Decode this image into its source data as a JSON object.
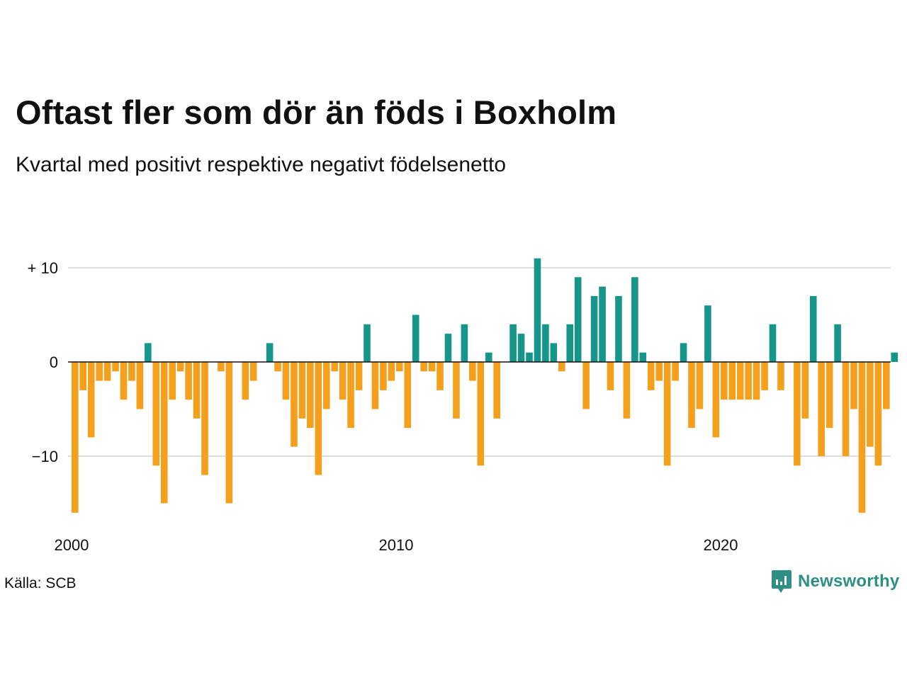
{
  "title": "Oftast fler som dör än föds i Boxholm",
  "subtitle": "Kvartal med positivt respektive negativt födelsenetto",
  "source": "Källa: SCB",
  "brand": {
    "name": "Newsworthy",
    "icon": "newsworthy-logo-icon"
  },
  "colors": {
    "positive": "#16968a",
    "negative": "#f4a01c",
    "grid": "#dddddd",
    "baseline": "#111111",
    "brand": "#2e8f84"
  },
  "chart_data": {
    "type": "bar",
    "title": "Oftast fler som dör än föds i Boxholm",
    "subtitle": "Kvartal med positivt respektive negativt födelsenetto",
    "xlabel": "",
    "ylabel": "",
    "x_start": "2000-Q1",
    "x_ticks": [
      "2000",
      "2010",
      "2020"
    ],
    "y_ticks": [
      {
        "value": 10,
        "label": "+ 10"
      },
      {
        "value": 0,
        "label": "0"
      },
      {
        "value": -10,
        "label": "−10"
      }
    ],
    "ylim": [
      -16,
      11
    ],
    "grid": true,
    "legend": "none",
    "values": [
      -16,
      -3,
      -8,
      -2,
      -2,
      -1,
      -4,
      -2,
      -5,
      2,
      -11,
      -15,
      -4,
      -1,
      -4,
      -6,
      -12,
      0,
      -1,
      -15,
      0,
      -4,
      -2,
      0,
      2,
      -1,
      -4,
      -9,
      -6,
      -7,
      -12,
      -5,
      -1,
      -4,
      -7,
      -3,
      4,
      -5,
      -3,
      -2,
      -1,
      -7,
      5,
      -1,
      -1,
      -3,
      3,
      -6,
      4,
      -2,
      -11,
      1,
      -6,
      0,
      4,
      3,
      1,
      11,
      4,
      2,
      -1,
      4,
      9,
      -5,
      7,
      8,
      -3,
      7,
      -6,
      9,
      1,
      -3,
      -2,
      -11,
      -2,
      2,
      -7,
      -5,
      6,
      -8,
      -4,
      -4,
      -4,
      -4,
      -4,
      -3,
      4,
      -3,
      0,
      -11,
      -6,
      7,
      -10,
      -7,
      4,
      -10,
      -5,
      -16,
      -9,
      -11,
      -5,
      1
    ]
  }
}
